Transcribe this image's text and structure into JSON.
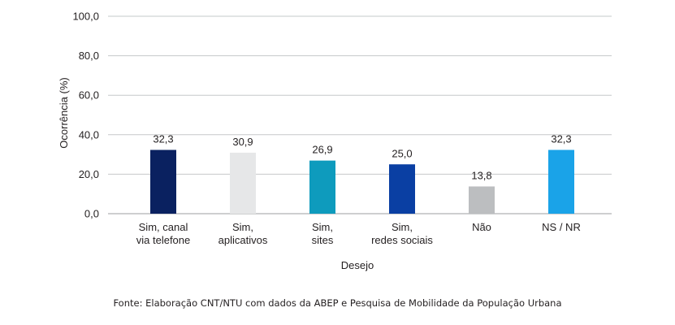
{
  "chart_data": {
    "type": "bar",
    "categories": [
      [
        "Sim, canal",
        "via telefone"
      ],
      [
        "Sim,",
        "aplicativos"
      ],
      [
        "Sim,",
        "sites"
      ],
      [
        "Sim,",
        "redes sociais"
      ],
      [
        "Não"
      ],
      [
        "NS / NR"
      ]
    ],
    "values": [
      32.3,
      30.9,
      26.9,
      25.0,
      13.8,
      32.3
    ],
    "value_labels": [
      "32,3",
      "30,9",
      "26,9",
      "25,0",
      "13,8",
      "32,3"
    ],
    "colors": [
      "#0a2160",
      "#e6e7e8",
      "#0e9bbd",
      "#0a3fa3",
      "#bcbec0",
      "#1aa3e8"
    ],
    "ylabel": "Ocorrência (%)",
    "xlabel": "Desejo",
    "ylim": [
      0,
      100
    ],
    "yticks": [
      "0,0",
      "20,0",
      "40,0",
      "60,0",
      "80,0",
      "100,0"
    ],
    "grid": true
  },
  "source": "Fonte: Elaboração CNT/NTU com dados da ABEP e Pesquisa de Mobilidade da População Urbana"
}
